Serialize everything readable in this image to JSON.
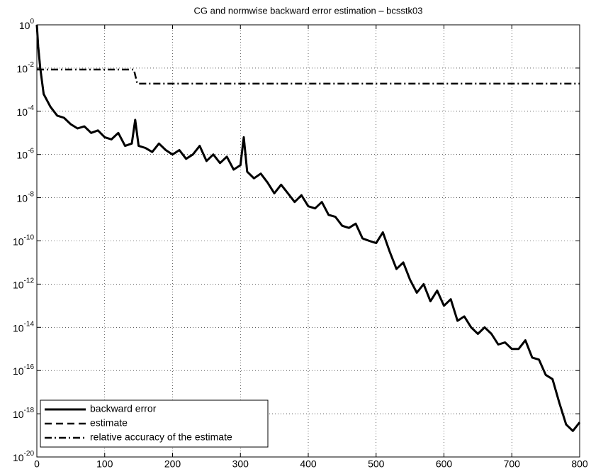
{
  "chart_data": {
    "type": "line",
    "title": "CG and normwise backward error estimation – bcsstk03",
    "log_y": true,
    "grid": true,
    "legend": "lower left",
    "xlim": [
      0,
      800
    ],
    "xticks": [
      0,
      100,
      200,
      300,
      400,
      500,
      600,
      700,
      800
    ],
    "ylim": [
      1e-20,
      1
    ],
    "yticks": [
      {
        "value": 1,
        "label": "10^0"
      },
      {
        "value": 0.01,
        "label": "10^-2"
      },
      {
        "value": 0.0001,
        "label": "10^-4"
      },
      {
        "value": 1e-06,
        "label": "10^-6"
      },
      {
        "value": 1e-08,
        "label": "10^-8"
      },
      {
        "value": 1e-10,
        "label": "10^-10"
      },
      {
        "value": 1e-12,
        "label": "10^-12"
      },
      {
        "value": 1e-14,
        "label": "10^-14"
      },
      {
        "value": 1e-16,
        "label": "10^-16"
      },
      {
        "value": 1e-18,
        "label": "10^-18"
      },
      {
        "value": 1e-20,
        "label": "10^-20"
      }
    ],
    "series": [
      {
        "name": "backward error",
        "color": "#000000",
        "style": "solid",
        "x": [
          0,
          2,
          5,
          10,
          20,
          30,
          40,
          50,
          60,
          70,
          80,
          90,
          100,
          110,
          120,
          130,
          140,
          145,
          150,
          160,
          170,
          180,
          190,
          200,
          210,
          220,
          230,
          240,
          250,
          260,
          270,
          280,
          290,
          300,
          305,
          310,
          320,
          330,
          340,
          350,
          360,
          370,
          380,
          390,
          400,
          410,
          420,
          430,
          440,
          450,
          460,
          470,
          480,
          490,
          500,
          510,
          520,
          530,
          540,
          550,
          560,
          570,
          580,
          590,
          600,
          610,
          620,
          630,
          640,
          650,
          660,
          670,
          680,
          690,
          700,
          710,
          720,
          730,
          740,
          750,
          760,
          770,
          780,
          790,
          800
        ],
        "values": [
          1,
          0.1,
          0.01,
          0.00063,
          0.00016,
          6.3e-05,
          5e-05,
          2.5e-05,
          1.6e-05,
          2e-05,
          1e-05,
          1.3e-05,
          6.3e-06,
          5e-06,
          1e-05,
          2.5e-06,
          3.2e-06,
          4e-05,
          2.5e-06,
          2e-06,
          1.3e-06,
          3.2e-06,
          1.6e-06,
          1e-06,
          1.6e-06,
          6.3e-07,
          1e-06,
          2.5e-06,
          5e-07,
          1e-06,
          4e-07,
          7.9e-07,
          2e-07,
          3.2e-07,
          6.3e-06,
          1.6e-07,
          7.9e-08,
          1.3e-07,
          5e-08,
          1.6e-08,
          4e-08,
          1.6e-08,
          6.3e-09,
          1.3e-08,
          4e-09,
          3.2e-09,
          6.3e-09,
          1.6e-09,
          1.3e-09,
          5e-10,
          4e-10,
          6.3e-10,
          1.3e-10,
          1e-10,
          7.9e-11,
          2.5e-10,
          3.2e-11,
          5e-12,
          1e-11,
          1.6e-12,
          4e-13,
          1e-12,
          1.6e-13,
          5e-13,
          1e-13,
          2e-13,
          2e-14,
          3.2e-14,
          1e-14,
          5e-15,
          1e-14,
          5e-15,
          1.6e-15,
          2e-15,
          1e-15,
          1e-15,
          2.5e-15,
          4e-16,
          3.2e-16,
          6.3e-17,
          4e-17,
          3.2e-18,
          3.2e-19,
          1.6e-19,
          4e-19
        ]
      },
      {
        "name": "estimate",
        "color": "#000000",
        "style": "dashed",
        "x": [
          0,
          2,
          5,
          10,
          20,
          30,
          40,
          50,
          60,
          70,
          80,
          90,
          100,
          110,
          120,
          130,
          140,
          145,
          150,
          160,
          170,
          180,
          190,
          200,
          210,
          220,
          230,
          240,
          250,
          260,
          270,
          280,
          290,
          300,
          305,
          310,
          320,
          330,
          340,
          350,
          360,
          370,
          380,
          390,
          400,
          410,
          420,
          430,
          440,
          450,
          460,
          470,
          480,
          490,
          500,
          510,
          520,
          530,
          540,
          550,
          560,
          570,
          580,
          590,
          600,
          610,
          620,
          630,
          640,
          650,
          660,
          670,
          680,
          690,
          700,
          710,
          720,
          730,
          740,
          750,
          760,
          770,
          780,
          790,
          800
        ],
        "values": [
          1,
          0.1,
          0.01,
          0.00063,
          0.00016,
          6.3e-05,
          5e-05,
          2.5e-05,
          1.6e-05,
          2e-05,
          1e-05,
          1.3e-05,
          6.3e-06,
          5e-06,
          1e-05,
          2.5e-06,
          3.2e-06,
          4e-05,
          2.5e-06,
          2e-06,
          1.3e-06,
          3.2e-06,
          1.6e-06,
          1e-06,
          1.6e-06,
          6.3e-07,
          1e-06,
          2.5e-06,
          5e-07,
          1e-06,
          4e-07,
          7.9e-07,
          2e-07,
          3.2e-07,
          6.3e-06,
          1.6e-07,
          7.9e-08,
          1.3e-07,
          5e-08,
          1.6e-08,
          4e-08,
          1.6e-08,
          6.3e-09,
          1.3e-08,
          4e-09,
          3.2e-09,
          6.3e-09,
          1.6e-09,
          1.3e-09,
          5e-10,
          4e-10,
          6.3e-10,
          1.3e-10,
          1e-10,
          7.9e-11,
          2.5e-10,
          3.2e-11,
          5e-12,
          1e-11,
          1.6e-12,
          4e-13,
          1e-12,
          1.6e-13,
          5e-13,
          1e-13,
          2e-13,
          2e-14,
          3.2e-14,
          1e-14,
          5e-15,
          1e-14,
          5e-15,
          1.6e-15,
          2e-15,
          1e-15,
          1e-15,
          2.5e-15,
          4e-16,
          3.2e-16,
          6.3e-17,
          4e-17,
          3.2e-18,
          3.2e-19,
          1.6e-19,
          4e-19
        ]
      },
      {
        "name": "relative accuracy of the estimate",
        "color": "#000000",
        "style": "dashdot",
        "x": [
          0,
          143,
          148,
          800
        ],
        "values": [
          0.0085,
          0.0085,
          0.0019,
          0.0019
        ]
      }
    ]
  }
}
